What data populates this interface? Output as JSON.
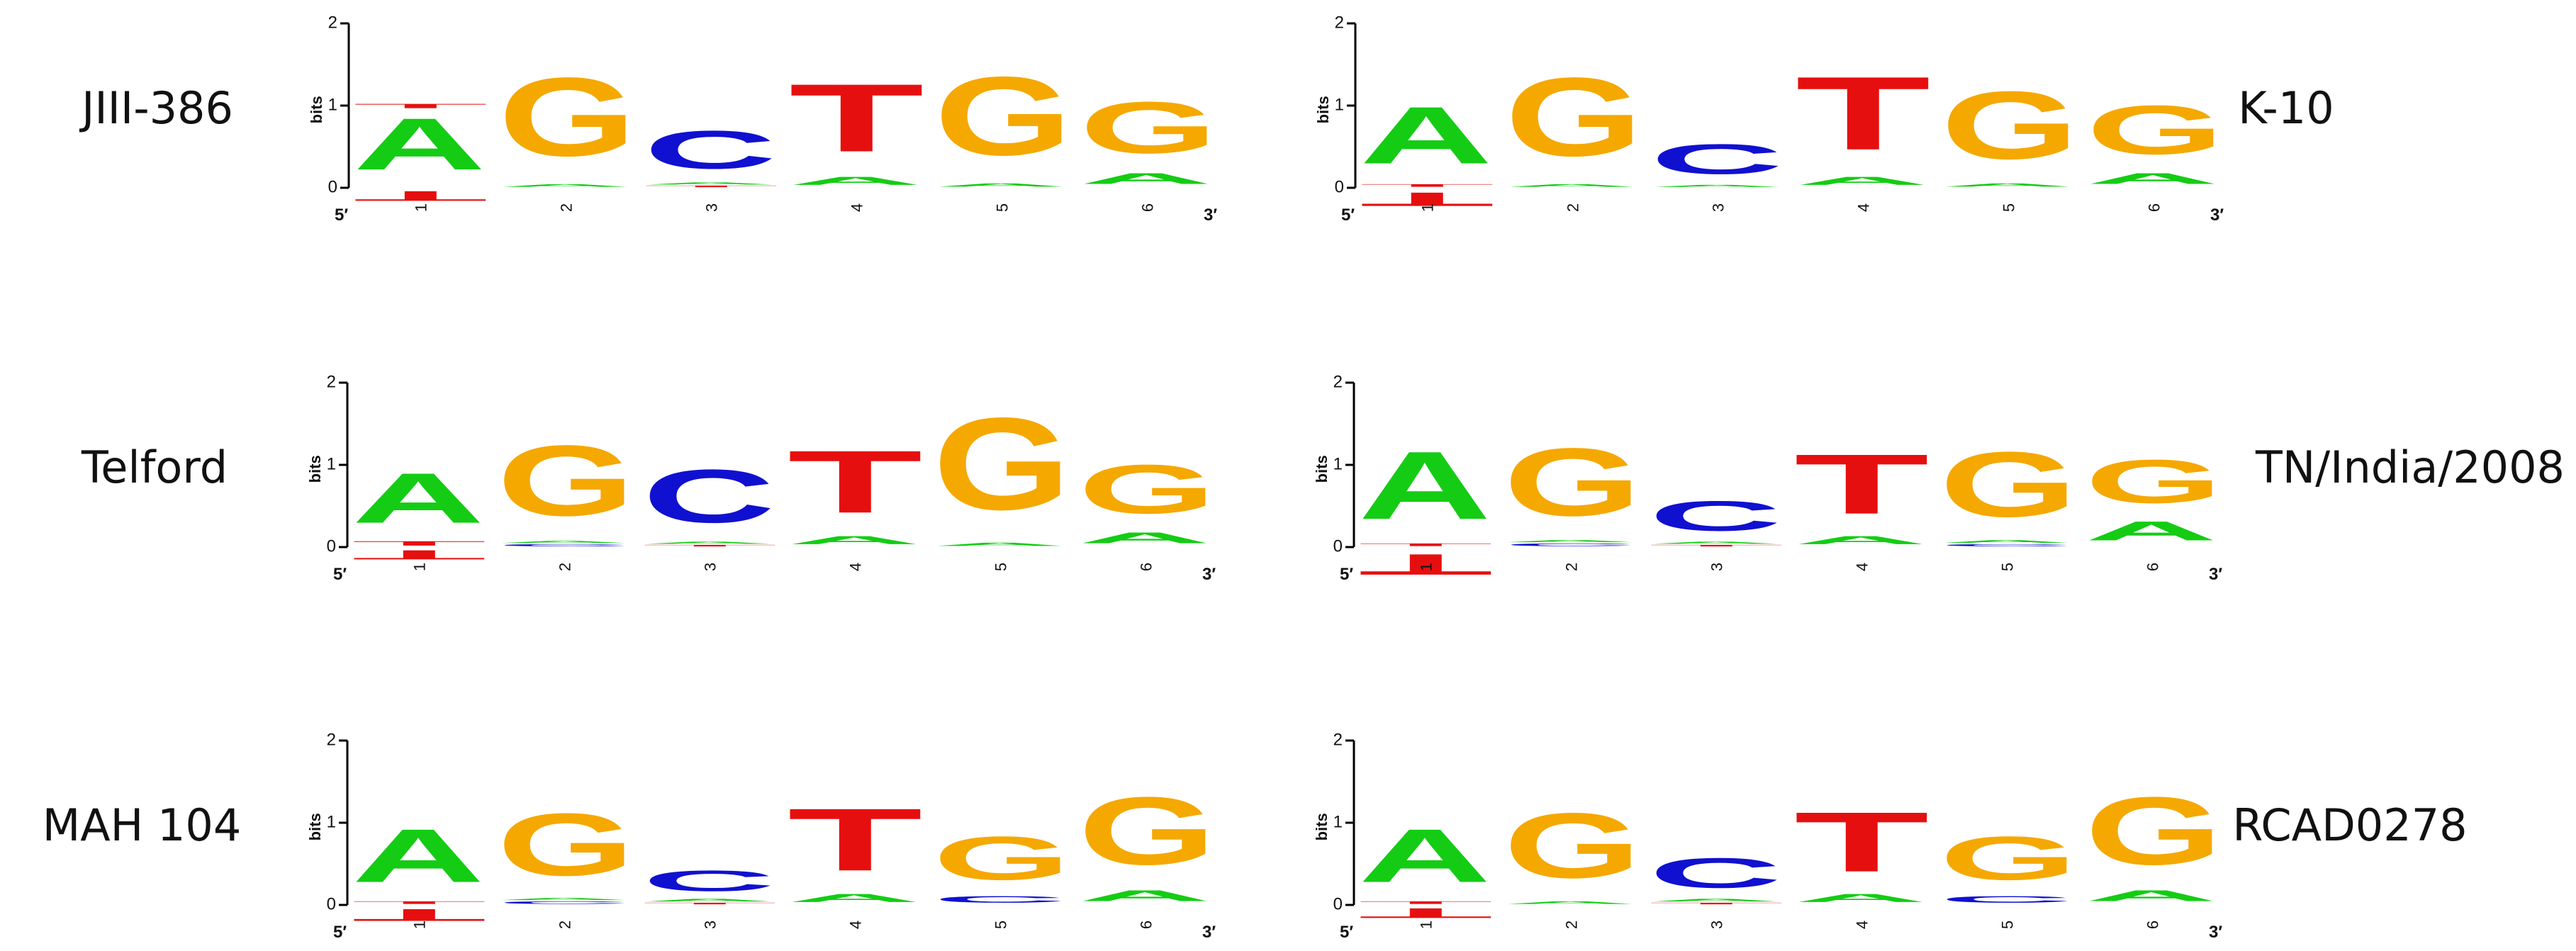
{
  "colors": {
    "A": "#14cc14",
    "C": "#1010d0",
    "G": "#f5a800",
    "T": "#e60f0f"
  },
  "chart_data": [
    {
      "type": "sequence_logo",
      "strain": "JIII-386",
      "ylabel": "bits",
      "ylim": [
        0,
        2
      ],
      "y_ticks": [
        "0",
        "1",
        "2"
      ],
      "x_ticks": [
        "1",
        "2",
        "3",
        "4",
        "5",
        "6"
      ],
      "end_labels": [
        "5′",
        "3′"
      ],
      "positions": [
        {
          "pos": "1",
          "above": [
            [
              "A",
              0.95
            ],
            [
              "T",
              0.08
            ]
          ],
          "below": [
            [
              "T",
              0.18
            ]
          ]
        },
        {
          "pos": "2",
          "above": [
            [
              "A",
              0.05
            ],
            [
              "G",
              1.45
            ]
          ],
          "below": []
        },
        {
          "pos": "3",
          "above": [
            [
              "T",
              0.03
            ],
            [
              "A",
              0.04
            ],
            [
              "C",
              0.7
            ]
          ],
          "below": []
        },
        {
          "pos": "4",
          "above": [
            [
              "A",
              0.15
            ],
            [
              "T",
              1.25
            ]
          ],
          "below": []
        },
        {
          "pos": "5",
          "above": [
            [
              "A",
              0.06
            ],
            [
              "G",
              1.45
            ]
          ],
          "below": []
        },
        {
          "pos": "6",
          "above": [
            [
              "A",
              0.2
            ],
            [
              "G",
              0.95
            ]
          ],
          "below": []
        }
      ]
    },
    {
      "type": "sequence_logo",
      "strain": "K-10",
      "ylabel": "bits",
      "ylim": [
        0,
        2
      ],
      "y_ticks": [
        "0",
        "1",
        "2"
      ],
      "x_ticks": [
        "1",
        "2",
        "3",
        "4",
        "5",
        "6"
      ],
      "end_labels": [
        "5′",
        "3′"
      ],
      "positions": [
        {
          "pos": "1",
          "above": [
            [
              "T",
              0.05
            ],
            [
              "A",
              1.05
            ]
          ],
          "below": [
            [
              "T",
              0.25
            ]
          ]
        },
        {
          "pos": "2",
          "above": [
            [
              "A",
              0.05
            ],
            [
              "G",
              1.45
            ]
          ],
          "below": []
        },
        {
          "pos": "3",
          "above": [
            [
              "A",
              0.04
            ],
            [
              "C",
              0.55
            ]
          ],
          "below": []
        },
        {
          "pos": "4",
          "above": [
            [
              "A",
              0.15
            ],
            [
              "T",
              1.35
            ]
          ],
          "below": []
        },
        {
          "pos": "5",
          "above": [
            [
              "A",
              0.06
            ],
            [
              "G",
              1.25
            ]
          ],
          "below": []
        },
        {
          "pos": "6",
          "above": [
            [
              "A",
              0.2
            ],
            [
              "G",
              0.9
            ]
          ],
          "below": []
        }
      ]
    },
    {
      "type": "sequence_logo",
      "strain": "Telford",
      "ylabel": "bits",
      "ylim": [
        0,
        2
      ],
      "y_ticks": [
        "0",
        "1",
        "2"
      ],
      "x_ticks": [
        "1",
        "2",
        "3",
        "4",
        "5",
        "6"
      ],
      "end_labels": [
        "5′",
        "3′"
      ],
      "positions": [
        {
          "pos": "1",
          "above": [
            [
              "T",
              0.08
            ],
            [
              "A",
              0.92
            ]
          ],
          "below": [
            [
              "T",
              0.17
            ]
          ]
        },
        {
          "pos": "2",
          "above": [
            [
              "C",
              0.04
            ],
            [
              "A",
              0.04
            ],
            [
              "G",
              1.3
            ]
          ],
          "below": []
        },
        {
          "pos": "3",
          "above": [
            [
              "T",
              0.03
            ],
            [
              "A",
              0.04
            ],
            [
              "C",
              0.98
            ]
          ],
          "below": []
        },
        {
          "pos": "4",
          "above": [
            [
              "A",
              0.15
            ],
            [
              "T",
              1.15
            ]
          ],
          "below": []
        },
        {
          "pos": "5",
          "above": [
            [
              "A",
              0.06
            ],
            [
              "G",
              1.7
            ]
          ],
          "below": []
        },
        {
          "pos": "6",
          "above": [
            [
              "A",
              0.2
            ],
            [
              "G",
              0.9
            ]
          ],
          "below": []
        }
      ]
    },
    {
      "type": "sequence_logo",
      "strain": "TN/India/2008",
      "ylabel": "bits",
      "ylim": [
        0,
        2
      ],
      "y_ticks": [
        "0",
        "1",
        "2"
      ],
      "x_ticks": [
        "1",
        "2",
        "3",
        "4",
        "5",
        "6"
      ],
      "end_labels": [
        "5′",
        "3′"
      ],
      "positions": [
        {
          "pos": "1",
          "above": [
            [
              "T",
              0.05
            ],
            [
              "A",
              1.25
            ]
          ],
          "below": [
            [
              "T",
              0.38
            ]
          ]
        },
        {
          "pos": "2",
          "above": [
            [
              "C",
              0.05
            ],
            [
              "A",
              0.04
            ],
            [
              "G",
              1.25
            ]
          ],
          "below": []
        },
        {
          "pos": "3",
          "above": [
            [
              "T",
              0.03
            ],
            [
              "A",
              0.04
            ],
            [
              "C",
              0.55
            ]
          ],
          "below": []
        },
        {
          "pos": "4",
          "above": [
            [
              "A",
              0.15
            ],
            [
              "T",
              1.1
            ]
          ],
          "below": []
        },
        {
          "pos": "5",
          "above": [
            [
              "C",
              0.04
            ],
            [
              "A",
              0.05
            ],
            [
              "G",
              1.2
            ]
          ],
          "below": []
        },
        {
          "pos": "6",
          "above": [
            [
              "A",
              0.35
            ],
            [
              "G",
              0.8
            ]
          ],
          "below": []
        }
      ]
    },
    {
      "type": "sequence_logo",
      "strain": "MAH 104",
      "ylabel": "bits",
      "ylim": [
        0,
        2
      ],
      "y_ticks": [
        "0",
        "1",
        "2"
      ],
      "x_ticks": [
        "1",
        "2",
        "3",
        "4",
        "5",
        "6"
      ],
      "end_labels": [
        "5′",
        "3′"
      ],
      "positions": [
        {
          "pos": "1",
          "above": [
            [
              "T",
              0.05
            ],
            [
              "A",
              0.98
            ]
          ],
          "below": [
            [
              "T",
              0.22
            ]
          ]
        },
        {
          "pos": "2",
          "above": [
            [
              "C",
              0.05
            ],
            [
              "A",
              0.04
            ],
            [
              "G",
              1.15
            ]
          ],
          "below": []
        },
        {
          "pos": "3",
          "above": [
            [
              "T",
              0.03
            ],
            [
              "A",
              0.05
            ],
            [
              "C",
              0.38
            ]
          ],
          "below": []
        },
        {
          "pos": "4",
          "above": [
            [
              "A",
              0.15
            ],
            [
              "T",
              1.15
            ]
          ],
          "below": []
        },
        {
          "pos": "5",
          "above": [
            [
              "C",
              0.12
            ],
            [
              "G",
              0.8
            ]
          ],
          "below": []
        },
        {
          "pos": "6",
          "above": [
            [
              "A",
              0.2
            ],
            [
              "G",
              1.25
            ]
          ],
          "below": []
        }
      ]
    },
    {
      "type": "sequence_logo",
      "strain": "RCAD0278",
      "ylabel": "bits",
      "ylim": [
        0,
        2
      ],
      "y_ticks": [
        "0",
        "1",
        "2"
      ],
      "x_ticks": [
        "1",
        "2",
        "3",
        "4",
        "5",
        "6"
      ],
      "end_labels": [
        "5′",
        "3′"
      ],
      "positions": [
        {
          "pos": "1",
          "above": [
            [
              "T",
              0.05
            ],
            [
              "A",
              0.98
            ]
          ],
          "below": [
            [
              "T",
              0.18
            ]
          ]
        },
        {
          "pos": "2",
          "above": [
            [
              "A",
              0.05
            ],
            [
              "G",
              1.2
            ]
          ],
          "below": []
        },
        {
          "pos": "3",
          "above": [
            [
              "T",
              0.03
            ],
            [
              "A",
              0.05
            ],
            [
              "C",
              0.55
            ]
          ],
          "below": []
        },
        {
          "pos": "4",
          "above": [
            [
              "A",
              0.15
            ],
            [
              "T",
              1.1
            ]
          ],
          "below": []
        },
        {
          "pos": "5",
          "above": [
            [
              "C",
              0.12
            ],
            [
              "G",
              0.8
            ]
          ],
          "below": []
        },
        {
          "pos": "6",
          "above": [
            [
              "A",
              0.2
            ],
            [
              "G",
              1.25
            ]
          ],
          "below": []
        }
      ]
    }
  ]
}
